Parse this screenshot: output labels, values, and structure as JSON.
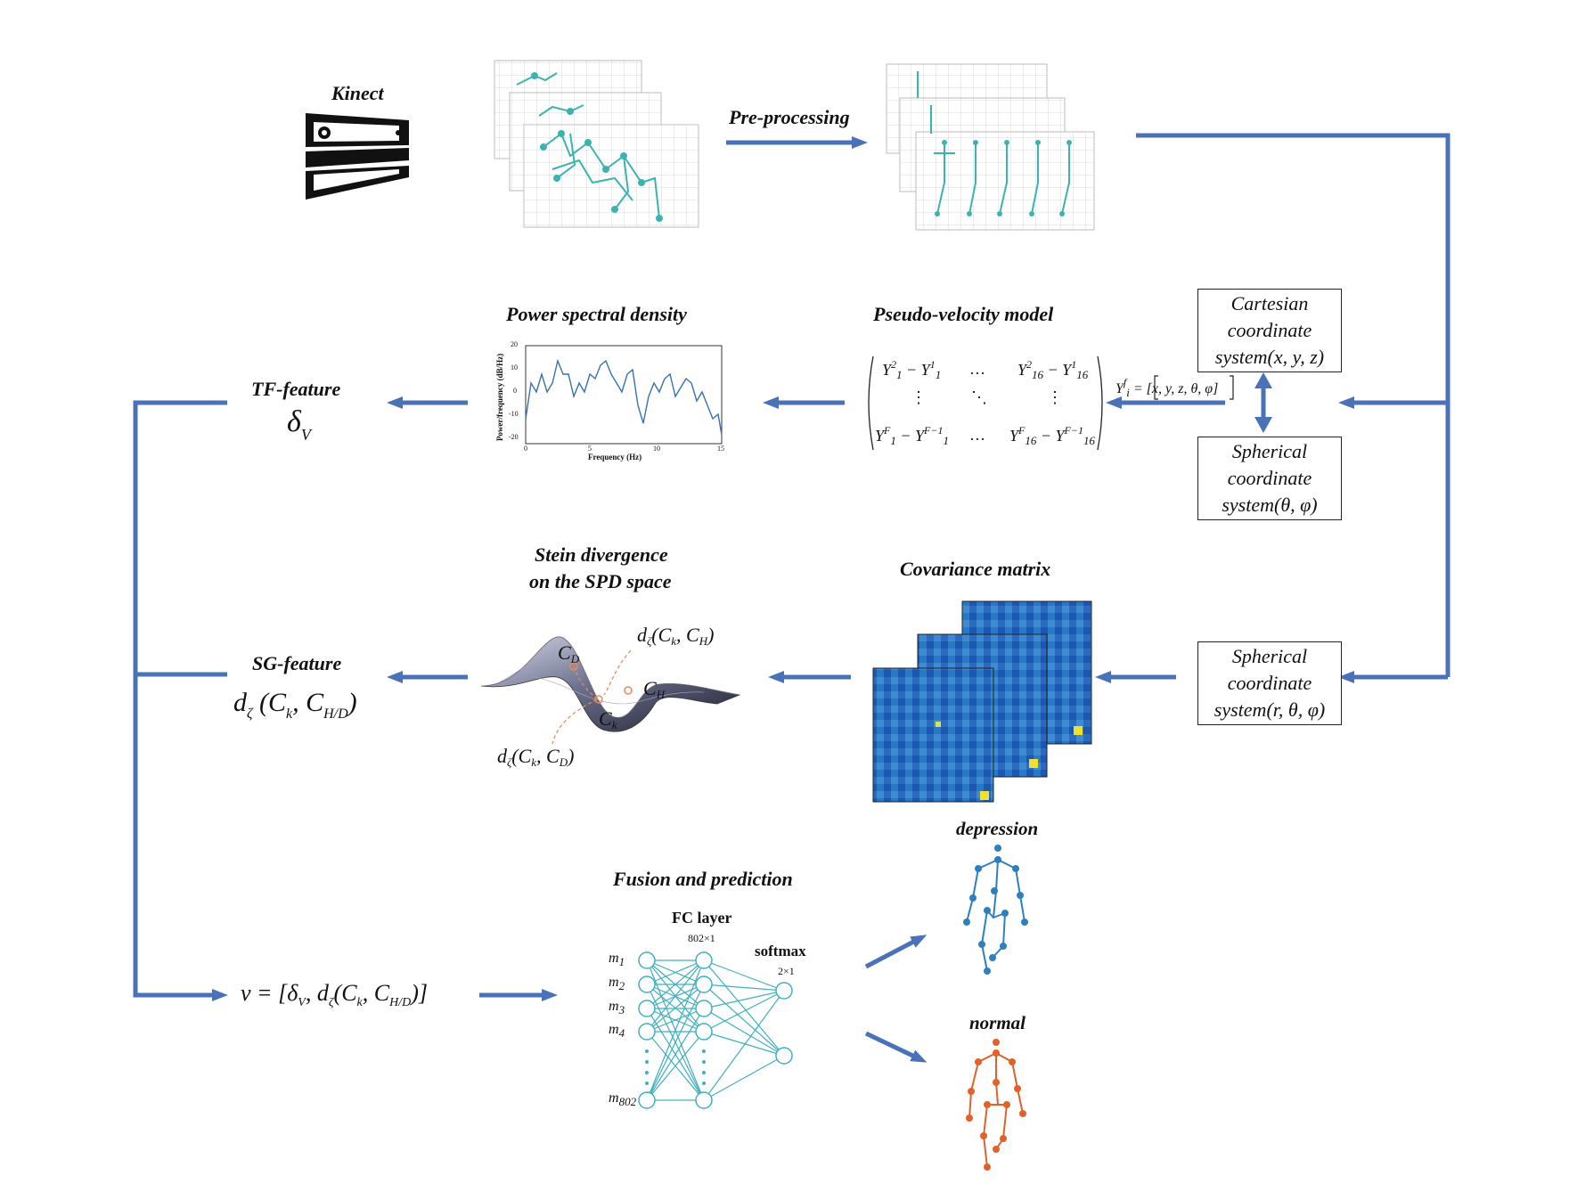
{
  "titles": {
    "kinect": "Kinect",
    "preprocessing": "Pre-processing",
    "psd": "Power spectral density",
    "pseudo_velocity": "Pseudo-velocity model",
    "tf_feature": "TF-feature",
    "stein_line1": "Stein divergence",
    "stein_line2": "on the SPD space",
    "covariance": "Covariance matrix",
    "sg_feature": "SG-feature",
    "fusion": "Fusion and prediction",
    "depression": "depression",
    "normal": "normal"
  },
  "boxes": {
    "cartesian": [
      "Cartesian",
      "coordinate",
      "system(x, y, z)"
    ],
    "spherical1": [
      "Spherical",
      "coordinate",
      "system(θ, φ)"
    ],
    "spherical2": [
      "Spherical",
      "coordinate",
      "system(r, θ, φ)"
    ]
  },
  "math": {
    "delta_v": "δ",
    "delta_v_sub": "V",
    "sg_expr": "d",
    "sg_expr_rest": "(C",
    "yif": "Y",
    "yif_rest": "= [x, y, z, θ, φ]",
    "fusion_vec": "ν = [δ",
    "fusion_vec_rest": ", d",
    "cd": "C",
    "ch": "C",
    "ck": "C"
  },
  "matrix": {
    "r1c1": "Y",
    "dots_h": "…",
    "dots_v": "⋮",
    "dots_d": "⋱"
  },
  "psd_chart": {
    "ylabel": "Power/frequency (dB/Hz)",
    "xlabel": "Frequency (Hz)",
    "yticks": [
      "20",
      "10",
      "0",
      "-10",
      "-20"
    ],
    "xticks": [
      "0",
      "5",
      "10",
      "15"
    ]
  },
  "network": {
    "fc_title": "FC layer",
    "fc_size": "802×1",
    "softmax_title": "softmax",
    "softmax_size": "2×1",
    "inputs": [
      "m1",
      "m2",
      "m3",
      "m4",
      "m802"
    ]
  },
  "colors": {
    "arrow": "#4a72b8",
    "skeleton_teal": "#3bb3b0",
    "net": "#3fb0c0",
    "depression": "#2e7fc0",
    "normal": "#e0622a",
    "surface_dark": "#2a2a3a",
    "dashed": "#e88a5a"
  }
}
